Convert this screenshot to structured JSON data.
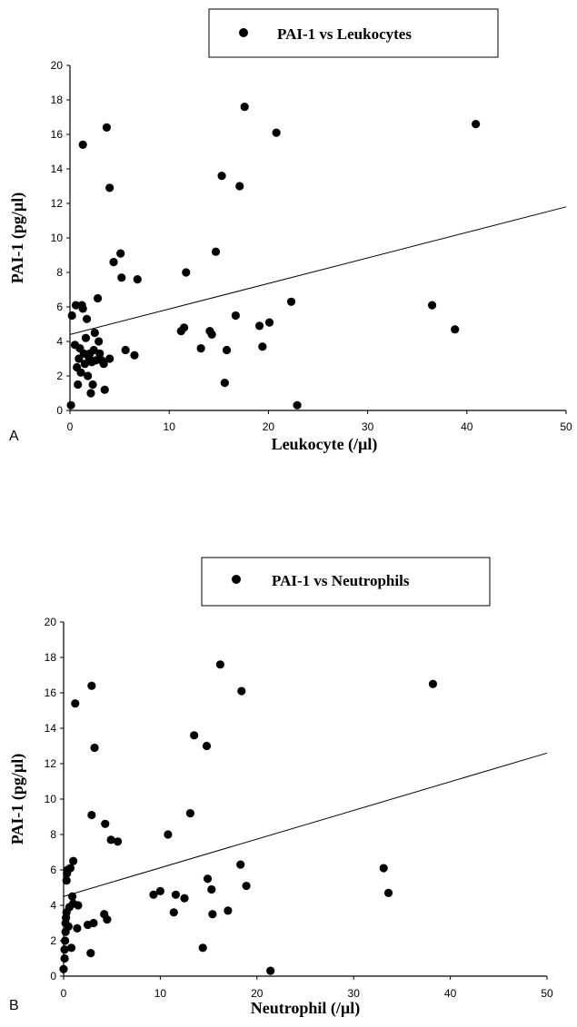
{
  "chart_data": [
    {
      "type": "scatter",
      "panel_label": "A",
      "legend": "PAI-1 vs Leukocytes",
      "xlabel": "Leukocyte (/µl)",
      "ylabel": "PAI-1 (pg/µl)",
      "xlim": [
        0,
        50
      ],
      "ylim": [
        0,
        20
      ],
      "xticks": [
        0,
        10,
        20,
        30,
        40,
        50
      ],
      "yticks": [
        0,
        2,
        4,
        6,
        8,
        10,
        12,
        14,
        16,
        18,
        20
      ],
      "trendline": [
        [
          0,
          4.4
        ],
        [
          50,
          11.8
        ]
      ],
      "points": [
        [
          0.1,
          0.3
        ],
        [
          0.2,
          5.5
        ],
        [
          0.5,
          3.8
        ],
        [
          0.6,
          6.1
        ],
        [
          0.7,
          2.5
        ],
        [
          0.8,
          1.5
        ],
        [
          0.9,
          3.0
        ],
        [
          1.0,
          3.6
        ],
        [
          1.1,
          2.2
        ],
        [
          1.2,
          6.1
        ],
        [
          1.3,
          5.9
        ],
        [
          1.4,
          3.3
        ],
        [
          1.5,
          2.7
        ],
        [
          1.6,
          4.2
        ],
        [
          1.7,
          5.3
        ],
        [
          1.8,
          2.0
        ],
        [
          1.9,
          3.1
        ],
        [
          2.0,
          3.3
        ],
        [
          2.1,
          1.0
        ],
        [
          2.2,
          2.8
        ],
        [
          2.3,
          1.5
        ],
        [
          2.4,
          3.5
        ],
        [
          2.5,
          4.5
        ],
        [
          2.6,
          2.9
        ],
        [
          2.8,
          6.5
        ],
        [
          2.9,
          4.0
        ],
        [
          3.0,
          3.3
        ],
        [
          3.2,
          2.9
        ],
        [
          3.4,
          2.7
        ],
        [
          3.5,
          1.2
        ],
        [
          4.0,
          3.0
        ],
        [
          4.4,
          8.6
        ],
        [
          5.1,
          9.1
        ],
        [
          5.2,
          7.7
        ],
        [
          5.6,
          3.5
        ],
        [
          6.5,
          3.2
        ],
        [
          6.8,
          7.6
        ],
        [
          1.3,
          15.4
        ],
        [
          3.7,
          16.4
        ],
        [
          4.0,
          12.9
        ],
        [
          11.2,
          4.6
        ],
        [
          11.5,
          4.8
        ],
        [
          11.7,
          8.0
        ],
        [
          13.2,
          3.6
        ],
        [
          14.1,
          4.6
        ],
        [
          14.3,
          4.4
        ],
        [
          14.7,
          9.2
        ],
        [
          15.3,
          13.6
        ],
        [
          15.6,
          1.6
        ],
        [
          15.8,
          3.5
        ],
        [
          16.7,
          5.5
        ],
        [
          17.1,
          13.0
        ],
        [
          17.6,
          17.6
        ],
        [
          19.1,
          4.9
        ],
        [
          19.4,
          3.7
        ],
        [
          20.1,
          5.1
        ],
        [
          20.8,
          16.1
        ],
        [
          22.3,
          6.3
        ],
        [
          22.9,
          0.3
        ],
        [
          36.5,
          6.1
        ],
        [
          38.8,
          4.7
        ],
        [
          40.9,
          16.6
        ]
      ]
    },
    {
      "type": "scatter",
      "panel_label": "B",
      "legend": "PAI-1 vs Neutrophils",
      "xlabel": "Neutrophil (/µl)",
      "ylabel": "PAI-1 (pg/µl)",
      "xlim": [
        0,
        50
      ],
      "ylim": [
        0,
        20
      ],
      "xticks": [
        0,
        10,
        20,
        30,
        40,
        50
      ],
      "yticks": [
        0,
        2,
        4,
        6,
        8,
        10,
        12,
        14,
        16,
        18,
        20
      ],
      "trendline": [
        [
          0,
          4.5
        ],
        [
          50,
          12.6
        ]
      ],
      "points": [
        [
          0.0,
          0.4
        ],
        [
          0.1,
          1.0
        ],
        [
          0.1,
          1.5
        ],
        [
          0.15,
          2.0
        ],
        [
          0.2,
          2.5
        ],
        [
          0.2,
          3.0
        ],
        [
          0.25,
          3.3
        ],
        [
          0.3,
          3.6
        ],
        [
          0.3,
          5.4
        ],
        [
          0.35,
          5.8
        ],
        [
          0.4,
          6.0
        ],
        [
          0.5,
          2.8
        ],
        [
          0.6,
          3.9
        ],
        [
          0.7,
          6.1
        ],
        [
          0.8,
          1.6
        ],
        [
          0.9,
          4.5
        ],
        [
          1.0,
          6.5
        ],
        [
          1.0,
          4.1
        ],
        [
          1.4,
          2.7
        ],
        [
          1.5,
          4.0
        ],
        [
          1.2,
          15.4
        ],
        [
          2.5,
          2.9
        ],
        [
          2.8,
          1.3
        ],
        [
          2.9,
          9.1
        ],
        [
          3.1,
          3.0
        ],
        [
          3.2,
          12.9
        ],
        [
          2.9,
          16.4
        ],
        [
          4.2,
          3.5
        ],
        [
          4.3,
          8.6
        ],
        [
          4.5,
          3.2
        ],
        [
          4.9,
          7.7
        ],
        [
          5.6,
          7.6
        ],
        [
          9.3,
          4.6
        ],
        [
          10.0,
          4.8
        ],
        [
          10.8,
          8.0
        ],
        [
          11.4,
          3.6
        ],
        [
          11.6,
          4.6
        ],
        [
          12.5,
          4.4
        ],
        [
          13.1,
          9.2
        ],
        [
          13.5,
          13.6
        ],
        [
          14.4,
          1.6
        ],
        [
          14.8,
          13.0
        ],
        [
          14.9,
          5.5
        ],
        [
          15.3,
          4.9
        ],
        [
          15.4,
          3.5
        ],
        [
          16.2,
          17.6
        ],
        [
          17.0,
          3.7
        ],
        [
          18.3,
          6.3
        ],
        [
          18.4,
          16.1
        ],
        [
          18.9,
          5.1
        ],
        [
          21.4,
          0.3
        ],
        [
          33.1,
          6.1
        ],
        [
          33.6,
          4.7
        ],
        [
          38.2,
          16.5
        ]
      ]
    }
  ]
}
